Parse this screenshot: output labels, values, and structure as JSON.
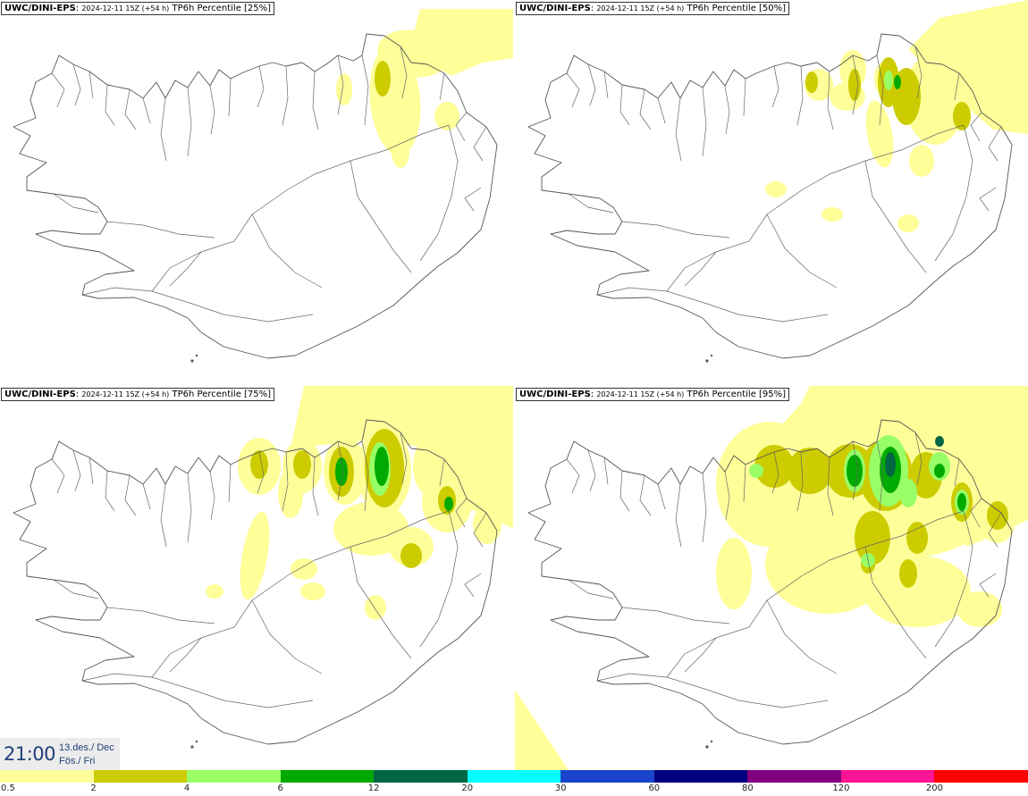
{
  "panels": [
    {
      "model": "UWC/DINI-EPS",
      "run": "2024-12-11 15Z (+54 h)",
      "field": "TP6h Percentile [25%]"
    },
    {
      "model": "UWC/DINI-EPS",
      "run": "2024-12-11 15Z (+54 h)",
      "field": "TP6h Percentile [50%]"
    },
    {
      "model": "UWC/DINI-EPS",
      "run": "2024-12-11 15Z (+54 h)",
      "field": "TP6h Percentile [75%]"
    },
    {
      "model": "UWC/DINI-EPS",
      "run": "2024-12-11 15Z (+54 h)",
      "field": "TP6h Percentile [95%]"
    }
  ],
  "valid_time": {
    "time": "21:00",
    "date_line1": "13.des./ Dec",
    "date_line2": "Fös./ Fri"
  },
  "legend": {
    "colors": [
      "#ffff99",
      "#cccc00",
      "#99ff66",
      "#00aa00",
      "#006644",
      "#00ffff",
      "#1a44cc",
      "#000080",
      "#800080",
      "#ff1493",
      "#ff0000"
    ],
    "labels": [
      "0.5",
      "2",
      "4",
      "6",
      "12",
      "20",
      "30",
      "60",
      "80",
      "120",
      "200"
    ]
  }
}
